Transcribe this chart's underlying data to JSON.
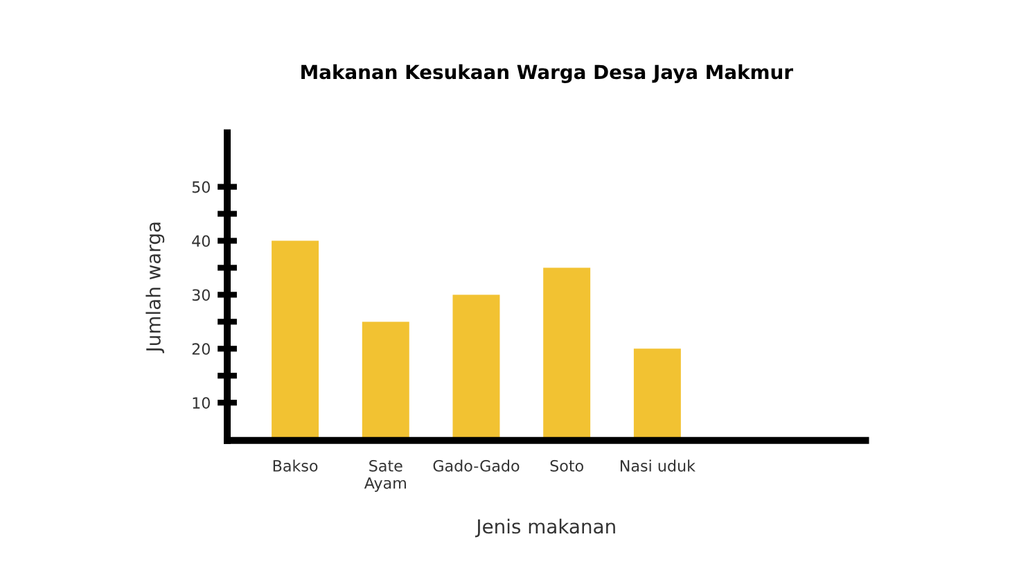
{
  "chart_data": {
    "type": "bar",
    "title": "Makanan Kesukaan Warga Desa Jaya Makmur",
    "xlabel": "Jenis makanan",
    "ylabel": "Jumlah warga",
    "categories": [
      "Bakso",
      "Sate\nAyam",
      "Gado-Gado",
      "Soto",
      "Nasi uduk"
    ],
    "values": [
      40,
      25,
      30,
      35,
      20
    ],
    "color": "#f2c232",
    "ylim": [
      3,
      60
    ],
    "yticks": [
      10,
      {
        "value": 15,
        "label": null
      },
      20,
      {
        "value": 25,
        "label": null
      },
      30,
      {
        "value": 35,
        "label": null
      },
      40,
      {
        "value": 45,
        "label": null
      },
      50
    ],
    "grid": false,
    "legend": false
  }
}
